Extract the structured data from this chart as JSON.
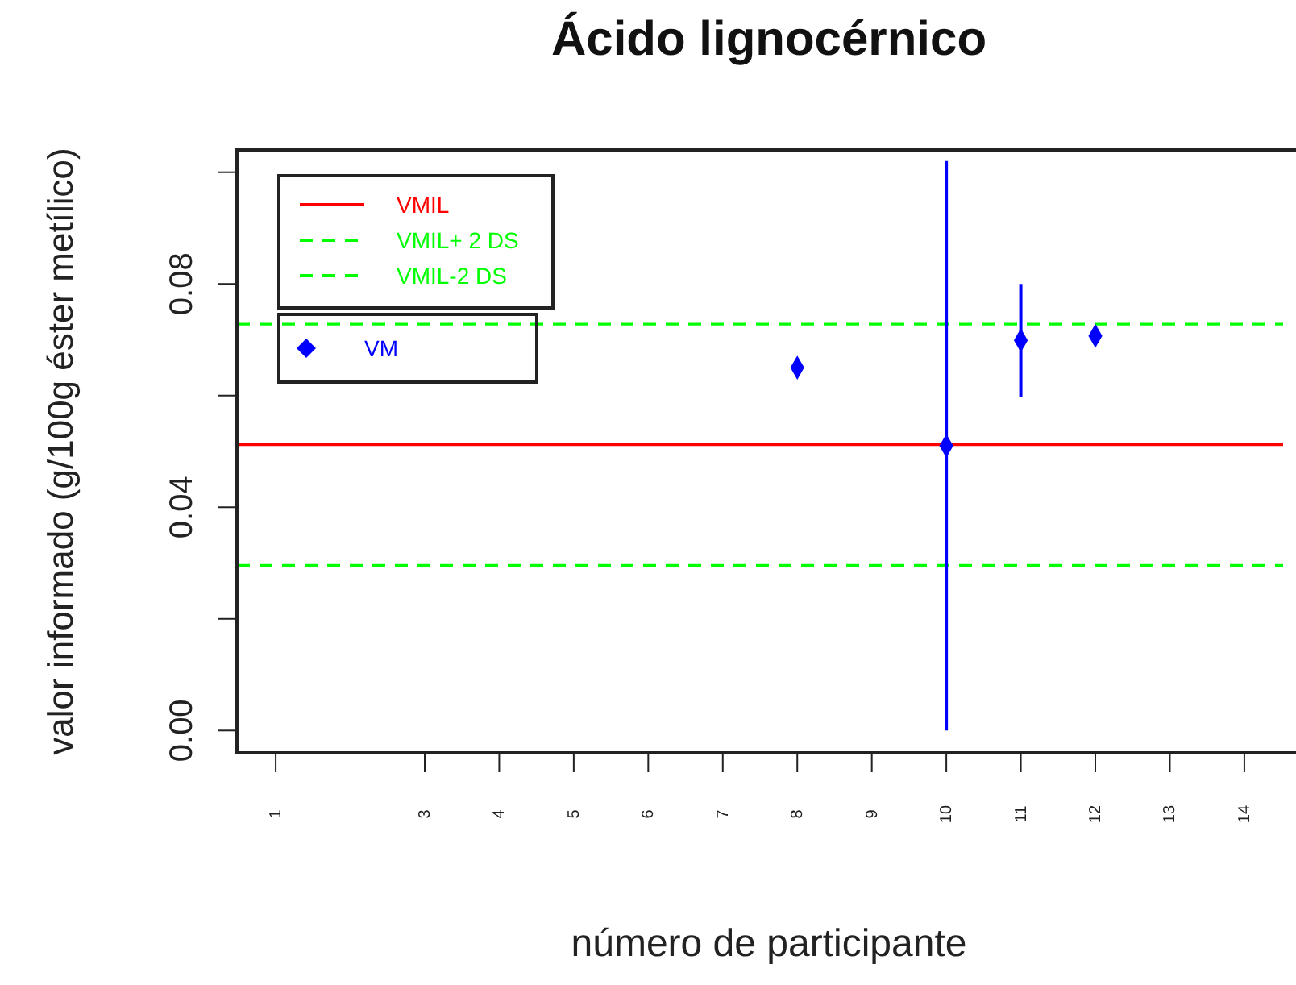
{
  "chart_data": {
    "type": "scatter",
    "title": "Ácido lignocérnico",
    "xlabel": "número de participante",
    "ylabel": "valor informado (g/100g éster metílico)",
    "xlim": [
      0.48,
      14.52
    ],
    "xticks": [
      1,
      3,
      4,
      5,
      6,
      7,
      8,
      9,
      10,
      11,
      12,
      13,
      14
    ],
    "ylim": [
      -0.004,
      0.104
    ],
    "yticks": [
      {
        "value": 0,
        "label": "0.00"
      },
      {
        "value": 0.02,
        "label": null
      },
      0.04,
      {
        "value": 0.06,
        "label": null
      },
      0.08,
      {
        "value": 0.1,
        "label": null
      }
    ],
    "series": [
      {
        "name": "VM",
        "color": "#0000ff",
        "x": [
          8,
          10,
          11,
          12
        ],
        "values": [
          0.065,
          0.051,
          0.0699,
          0.0707
        ],
        "errors": [
          null,
          [
            0,
            0.102
          ],
          [
            0.0597,
            0.08
          ],
          null
        ]
      }
    ],
    "ref_lines": [
      {
        "axis": "y",
        "value": 0.0512,
        "label": "VMIL",
        "color": "#ff0000",
        "line_style": "solid"
      },
      {
        "axis": "y",
        "value": 0.0728,
        "label": "VMIL+ 2 DS",
        "color": "#00ff00",
        "line_style": "dashed"
      },
      {
        "axis": "y",
        "value": 0.0296,
        "label": "VMIL-2 DS",
        "color": "#00ff00",
        "line_style": "dashed"
      }
    ],
    "marker": "diamond",
    "legend": "top left",
    "grid": false
  }
}
